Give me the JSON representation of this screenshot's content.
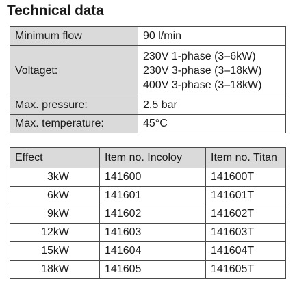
{
  "title": "Technical data",
  "spec": {
    "min_flow_label": "Minimum flow",
    "min_flow_value": "90 l/min",
    "voltage_label": "Voltaget:",
    "voltage_values": [
      "230V 1-phase (3–6kW)",
      "230V 3-phase (3–18kW)",
      "400V 3-phase (3–18kW)"
    ],
    "pressure_label": "Max. pressure:",
    "pressure_value": "2,5 bar",
    "temp_label": "Max. temperature:",
    "temp_value": "45°C"
  },
  "effect_table": {
    "headers": [
      "Effect",
      "Item no. Incoloy",
      "Item no. Titan"
    ],
    "rows": [
      [
        "3kW",
        "141600",
        "141600T"
      ],
      [
        "6kW",
        "141601",
        "141601T"
      ],
      [
        "9kW",
        "141602",
        "141602T"
      ],
      [
        "12kW",
        "141603",
        "141603T"
      ],
      [
        "15kW",
        "141604",
        "141604T"
      ],
      [
        "18kW",
        "141605",
        "141605T"
      ]
    ]
  }
}
